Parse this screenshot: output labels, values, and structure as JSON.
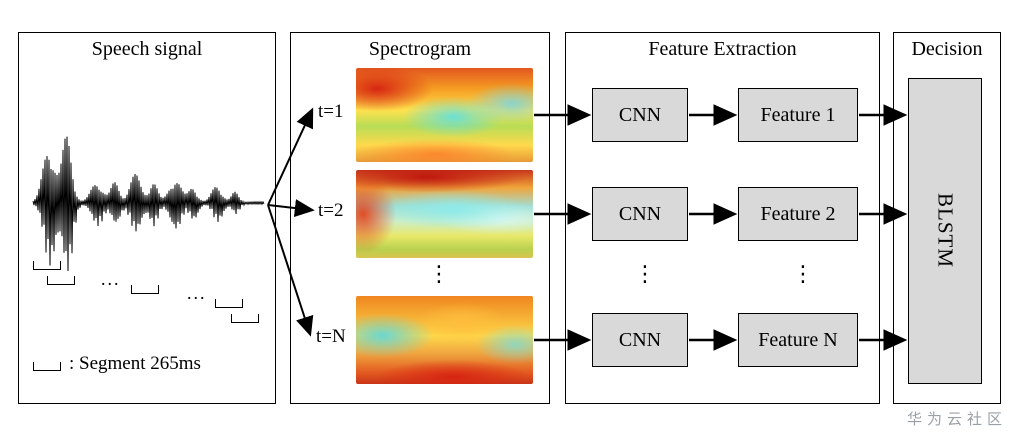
{
  "panels": {
    "speech": {
      "title": "Speech signal",
      "ellipsis1": "...",
      "ellipsis2": "...",
      "legend_label": ": Segment 265ms"
    },
    "spectrogram": {
      "title": "Spectrogram",
      "rows": [
        {
          "label": "t=1"
        },
        {
          "label": "t=2"
        },
        {
          "label": "t=N"
        }
      ],
      "dots": "⋮"
    },
    "feature": {
      "title": "Feature Extraction",
      "rows": [
        {
          "cnn": "CNN",
          "feature": "Feature 1"
        },
        {
          "cnn": "CNN",
          "feature": "Feature 2"
        },
        {
          "cnn": "CNN",
          "feature": "Feature N"
        }
      ],
      "cnn_dots": "⋮",
      "feature_dots": "⋮"
    },
    "decision": {
      "title": "Decision",
      "blstm_label": "BLSTM"
    }
  },
  "watermark": "华为云社区",
  "colors": {
    "box_fill": "#d9d9d9",
    "border": "#000000",
    "watermark_gray": "#9aa0a6"
  }
}
